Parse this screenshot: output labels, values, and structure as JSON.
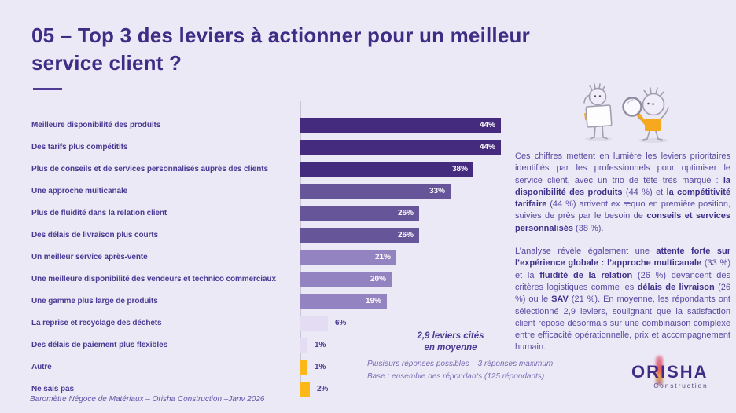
{
  "slide": {
    "title_line1": "05 – Top 3 des leviers à actionner pour un meilleur",
    "title_line2": "service client ?",
    "footer": "Baromètre Négoce de Matériaux – Orisha Construction –Janv 2026"
  },
  "chart_data": {
    "type": "bar",
    "orientation": "horizontal",
    "title": "Top 3 des leviers à actionner pour un meilleur service client",
    "xlim": [
      0,
      48
    ],
    "grid": false,
    "legend": "none",
    "categories": [
      "Meilleure disponibilité des produits",
      "Des tarifs plus compétitifs",
      "Plus de conseils et de services personnalisés auprès des clients",
      "Une approche multicanale",
      "Plus de fluidité dans la relation client",
      "Des délais de livraison plus courts",
      "Un meilleur service après-vente",
      "Une meilleure disponibilité des vendeurs et technico commerciaux",
      "Une gamme plus large de produits",
      "La reprise et recyclage des déchets",
      "Des délais de paiement plus flexibles",
      "Autre",
      "Ne sais pas"
    ],
    "values": [
      44,
      44,
      38,
      33,
      26,
      26,
      21,
      20,
      19,
      6,
      1,
      1,
      2
    ],
    "value_labels": [
      "44%",
      "44%",
      "38%",
      "33%",
      "26%",
      "26%",
      "21%",
      "20%",
      "19%",
      "6%",
      "1%",
      "1%",
      "2%"
    ],
    "bar_colors": [
      "#442B7E",
      "#442B7E",
      "#442B7E",
      "#675599",
      "#675599",
      "#675599",
      "#9483C1",
      "#9483C1",
      "#9483C1",
      "#E3DCF2",
      "#E3DCF2",
      "#FBB817",
      "#FBB817"
    ],
    "inside_label_min": 19,
    "annotation": {
      "line1": "2,9 leviers cités",
      "line2": "en moyenne"
    },
    "footnotes": [
      "Plusieurs réponses possibles – 3 réponses maximum",
      "Base : ensemble des répondants (125 répondants)"
    ]
  },
  "commentary": {
    "paragraphs": [
      [
        {
          "t": "Ces chiffres mettent en lumière les leviers prioritaires identifiés par les professionnels pour optimiser le service client, avec un trio de tête très marqué : ",
          "b": false
        },
        {
          "t": "la disponibilité des produits",
          "b": true
        },
        {
          "t": " (44 %) et ",
          "b": false
        },
        {
          "t": "la compétitivité tarifaire",
          "b": true
        },
        {
          "t": " (44 %) arrivent ex æquo en première position, suivies de près par le besoin de ",
          "b": false
        },
        {
          "t": "conseils et services personnalisés",
          "b": true
        },
        {
          "t": " (38 %).",
          "b": false
        }
      ],
      [
        {
          "t": "L’analyse révèle également une ",
          "b": false
        },
        {
          "t": "attente forte sur l’expérience globale : l’approche multicanale",
          "b": true
        },
        {
          "t": " (33 %) et la ",
          "b": false
        },
        {
          "t": "fluidité de la relation",
          "b": true
        },
        {
          "t": " (26 %) devancent des critères logistiques comme les ",
          "b": false
        },
        {
          "t": "délais de livraison",
          "b": true
        },
        {
          "t": " (26 %) ou le ",
          "b": false
        },
        {
          "t": "SAV",
          "b": true
        },
        {
          "t": " (21 %). En moyenne, les répondants ont sélectionné 2,9 leviers, soulignant que la satisfaction client repose désormais sur une combinaison complexe entre efficacité opérationnelle, prix et accompagnement humain.",
          "b": false
        }
      ]
    ]
  },
  "logo": {
    "brand": "ORISHA",
    "sub": "Construction"
  },
  "colors": {
    "background": "#ECE9F6",
    "title": "#3F2C85",
    "label": "#4B3A93",
    "body_text": "#5A49A1",
    "bar_dark": "#442B7E",
    "bar_medium": "#675599",
    "bar_light": "#9483C1",
    "bar_pale": "#E3DCF2",
    "accent_yellow": "#FBB817",
    "axis": "#C9C5D6"
  }
}
